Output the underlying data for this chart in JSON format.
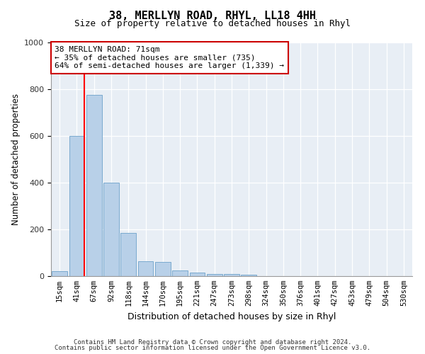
{
  "title": "38, MERLLYN ROAD, RHYL, LL18 4HH",
  "subtitle": "Size of property relative to detached houses in Rhyl",
  "xlabel": "Distribution of detached houses by size in Rhyl",
  "ylabel": "Number of detached properties",
  "bar_labels": [
    "15sqm",
    "41sqm",
    "67sqm",
    "92sqm",
    "118sqm",
    "144sqm",
    "170sqm",
    "195sqm",
    "221sqm",
    "247sqm",
    "273sqm",
    "298sqm",
    "324sqm",
    "350sqm",
    "376sqm",
    "401sqm",
    "427sqm",
    "453sqm",
    "479sqm",
    "504sqm",
    "530sqm"
  ],
  "bar_heights": [
    20,
    600,
    775,
    400,
    185,
    65,
    60,
    25,
    15,
    10,
    8,
    5,
    0,
    0,
    0,
    0,
    0,
    0,
    0,
    0,
    0
  ],
  "bar_color": "#b8d0e8",
  "bar_edge_color": "#7aaacf",
  "ylim": [
    0,
    1000
  ],
  "yticks": [
    0,
    200,
    400,
    600,
    800,
    1000
  ],
  "redline_bar_index": 1,
  "annotation_text": "38 MERLLYN ROAD: 71sqm\n← 35% of detached houses are smaller (735)\n64% of semi-detached houses are larger (1,339) →",
  "annotation_box_color": "#ffffff",
  "annotation_box_edgecolor": "#cc0000",
  "background_color": "#e8eef5",
  "footer_line1": "Contains HM Land Registry data © Crown copyright and database right 2024.",
  "footer_line2": "Contains public sector information licensed under the Open Government Licence v3.0."
}
